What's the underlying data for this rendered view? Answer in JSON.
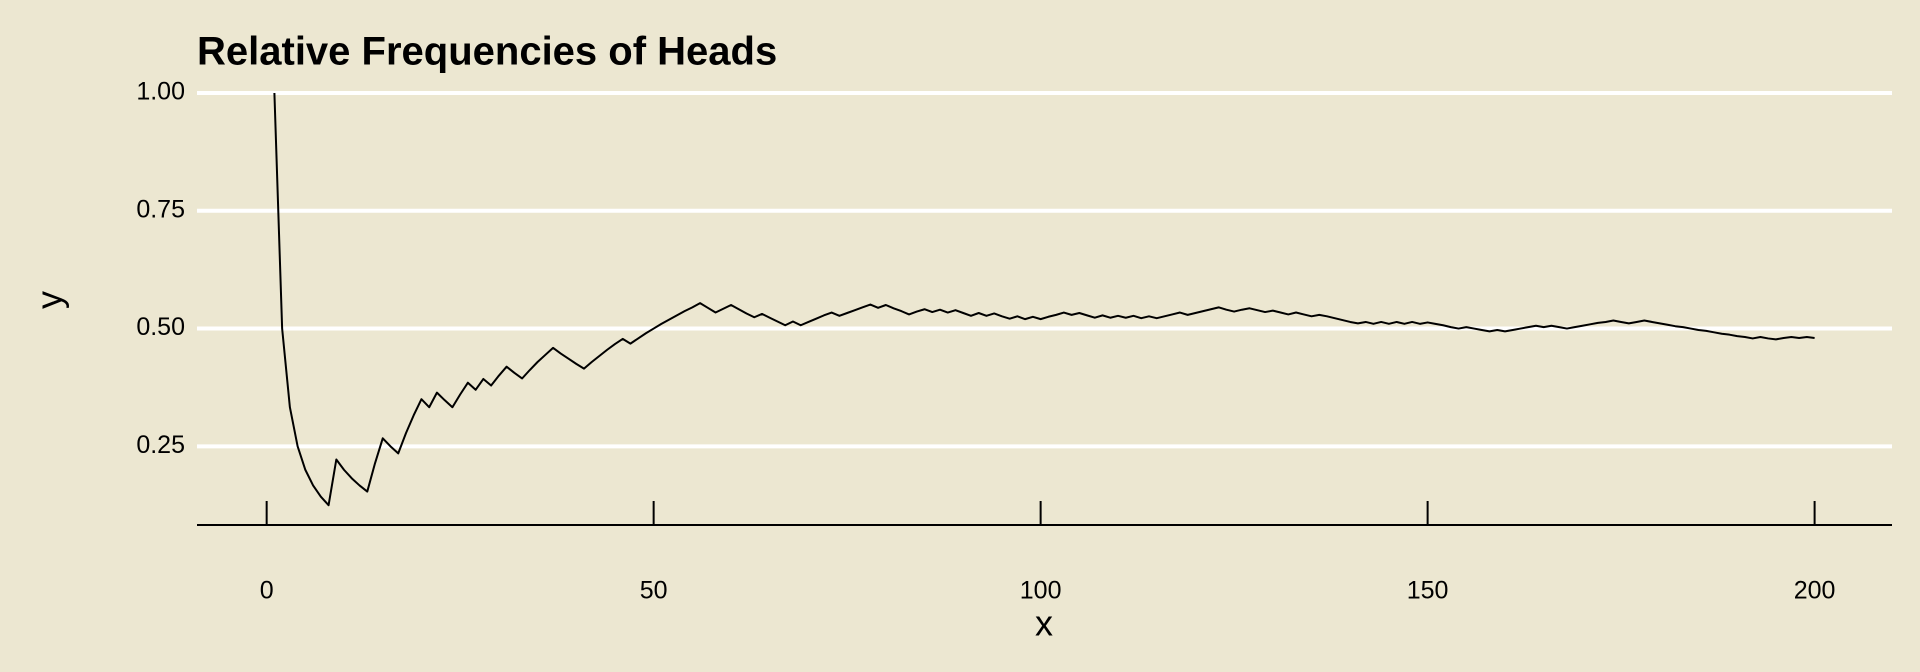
{
  "chart_data": {
    "type": "line",
    "title": "Relative Frequencies of Heads",
    "x_label": "x",
    "y_label": "y",
    "color": "#000000",
    "grid": true,
    "xlim": [
      -9,
      210
    ],
    "ylim": [
      0.083,
      1.0
    ],
    "xticks": [
      0,
      50,
      100,
      150,
      200
    ],
    "yticks": [
      {
        "value": 0.25,
        "label": "0.25"
      },
      {
        "value": 0.5,
        "label": "0.50"
      },
      {
        "value": 0.75,
        "label": "0.75"
      },
      {
        "value": 1.0,
        "label": "1.00"
      }
    ],
    "x": [
      1,
      2,
      3,
      4,
      5,
      6,
      7,
      8,
      9,
      10,
      11,
      12,
      13,
      14,
      15,
      16,
      17,
      18,
      19,
      20,
      21,
      22,
      23,
      24,
      25,
      26,
      27,
      28,
      29,
      30,
      31,
      32,
      33,
      34,
      35,
      36,
      37,
      38,
      39,
      40,
      41,
      42,
      43,
      44,
      45,
      46,
      47,
      48,
      49,
      50,
      51,
      52,
      53,
      54,
      55,
      56,
      57,
      58,
      59,
      60,
      61,
      62,
      63,
      64,
      65,
      66,
      67,
      68,
      69,
      70,
      71,
      72,
      73,
      74,
      75,
      76,
      77,
      78,
      79,
      80,
      81,
      82,
      83,
      84,
      85,
      86,
      87,
      88,
      89,
      90,
      91,
      92,
      93,
      94,
      95,
      96,
      97,
      98,
      99,
      100,
      101,
      102,
      103,
      104,
      105,
      106,
      107,
      108,
      109,
      110,
      111,
      112,
      113,
      114,
      115,
      116,
      117,
      118,
      119,
      120,
      121,
      122,
      123,
      124,
      125,
      126,
      127,
      128,
      129,
      130,
      131,
      132,
      133,
      134,
      135,
      136,
      137,
      138,
      139,
      140,
      141,
      142,
      143,
      144,
      145,
      146,
      147,
      148,
      149,
      150,
      151,
      152,
      153,
      154,
      155,
      156,
      157,
      158,
      159,
      160,
      161,
      162,
      163,
      164,
      165,
      166,
      167,
      168,
      169,
      170,
      171,
      172,
      173,
      174,
      175,
      176,
      177,
      178,
      179,
      180,
      181,
      182,
      183,
      184,
      185,
      186,
      187,
      188,
      189,
      190,
      191,
      192,
      193,
      194,
      195,
      196,
      197,
      198,
      199,
      200
    ],
    "values": [
      1.0,
      0.5,
      0.333,
      0.25,
      0.2,
      0.167,
      0.143,
      0.125,
      0.222,
      0.2,
      0.182,
      0.167,
      0.154,
      0.214,
      0.267,
      0.25,
      0.235,
      0.278,
      0.316,
      0.35,
      0.333,
      0.364,
      0.348,
      0.333,
      0.36,
      0.385,
      0.37,
      0.393,
      0.379,
      0.4,
      0.419,
      0.406,
      0.394,
      0.412,
      0.429,
      0.444,
      0.459,
      0.447,
      0.436,
      0.425,
      0.415,
      0.429,
      0.442,
      0.455,
      0.467,
      0.478,
      0.468,
      0.479,
      0.49,
      0.5,
      0.51,
      0.519,
      0.528,
      0.537,
      0.545,
      0.554,
      0.544,
      0.534,
      0.542,
      0.55,
      0.541,
      0.532,
      0.524,
      0.531,
      0.523,
      0.515,
      0.507,
      0.515,
      0.507,
      0.514,
      0.521,
      0.528,
      0.534,
      0.527,
      0.533,
      0.539,
      0.545,
      0.551,
      0.544,
      0.55,
      0.543,
      0.537,
      0.53,
      0.536,
      0.541,
      0.535,
      0.54,
      0.534,
      0.539,
      0.533,
      0.527,
      0.533,
      0.527,
      0.532,
      0.526,
      0.521,
      0.526,
      0.52,
      0.525,
      0.52,
      0.525,
      0.529,
      0.534,
      0.529,
      0.533,
      0.528,
      0.523,
      0.528,
      0.523,
      0.527,
      0.523,
      0.527,
      0.522,
      0.526,
      0.522,
      0.526,
      0.53,
      0.534,
      0.529,
      0.533,
      0.537,
      0.541,
      0.545,
      0.54,
      0.536,
      0.54,
      0.543,
      0.539,
      0.535,
      0.538,
      0.534,
      0.53,
      0.534,
      0.53,
      0.526,
      0.529,
      0.526,
      0.522,
      0.518,
      0.514,
      0.511,
      0.514,
      0.51,
      0.514,
      0.51,
      0.514,
      0.51,
      0.514,
      0.51,
      0.513,
      0.51,
      0.507,
      0.503,
      0.5,
      0.503,
      0.5,
      0.497,
      0.494,
      0.497,
      0.494,
      0.497,
      0.5,
      0.503,
      0.506,
      0.503,
      0.506,
      0.503,
      0.5,
      0.503,
      0.506,
      0.509,
      0.512,
      0.514,
      0.517,
      0.514,
      0.511,
      0.514,
      0.517,
      0.514,
      0.511,
      0.508,
      0.505,
      0.503,
      0.5,
      0.497,
      0.495,
      0.492,
      0.489,
      0.487,
      0.484,
      0.482,
      0.479,
      0.482,
      0.479,
      0.477,
      0.48,
      0.482,
      0.48,
      0.482,
      0.48
    ]
  }
}
